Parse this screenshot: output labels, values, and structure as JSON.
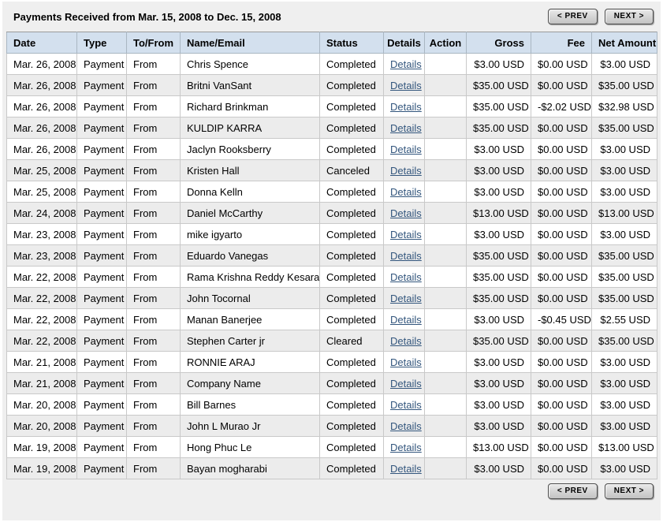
{
  "header": {
    "title": "Payments Received from Mar. 15, 2008 to Dec. 15, 2008",
    "prev_label": "< PREV",
    "next_label": "NEXT >"
  },
  "footer": {
    "prev_label": "< PREV",
    "next_label": "NEXT >"
  },
  "colors": {
    "panel_bg": "#efefef",
    "header_row_bg": "#d3e0ee",
    "alt_row_bg": "#ececec",
    "link": "#33567d"
  },
  "table": {
    "columns": [
      "Date",
      "Type",
      "To/From",
      "Name/Email",
      "Status",
      "Details",
      "Action",
      "Gross",
      "Fee",
      "Net Amount"
    ],
    "rows": [
      {
        "date": "Mar. 26, 2008",
        "type": "Payment",
        "to_from": "From",
        "name": "Chris Spence",
        "status": "Completed",
        "details_label": "Details",
        "action": "",
        "gross": "$3.00 USD",
        "fee": "$0.00 USD",
        "net": "$3.00 USD"
      },
      {
        "date": "Mar. 26, 2008",
        "type": "Payment",
        "to_from": "From",
        "name": "Britni VanSant",
        "status": "Completed",
        "details_label": "Details",
        "action": "",
        "gross": "$35.00 USD",
        "fee": "$0.00 USD",
        "net": "$35.00 USD"
      },
      {
        "date": "Mar. 26, 2008",
        "type": "Payment",
        "to_from": "From",
        "name": "Richard Brinkman",
        "status": "Completed",
        "details_label": "Details",
        "action": "",
        "gross": "$35.00 USD",
        "fee": "-$2.02 USD",
        "net": "$32.98 USD"
      },
      {
        "date": "Mar. 26, 2008",
        "type": "Payment",
        "to_from": "From",
        "name": "KULDIP KARRA",
        "status": "Completed",
        "details_label": "Details",
        "action": "",
        "gross": "$35.00 USD",
        "fee": "$0.00 USD",
        "net": "$35.00 USD"
      },
      {
        "date": "Mar. 26, 2008",
        "type": "Payment",
        "to_from": "From",
        "name": "Jaclyn Rooksberry",
        "status": "Completed",
        "details_label": "Details",
        "action": "",
        "gross": "$3.00 USD",
        "fee": "$0.00 USD",
        "net": "$3.00 USD"
      },
      {
        "date": "Mar. 25, 2008",
        "type": "Payment",
        "to_from": "From",
        "name": "Kristen Hall",
        "status": "Canceled",
        "details_label": "Details",
        "action": "",
        "gross": "$3.00 USD",
        "fee": "$0.00 USD",
        "net": "$3.00 USD"
      },
      {
        "date": "Mar. 25, 2008",
        "type": "Payment",
        "to_from": "From",
        "name": "Donna Kelln",
        "status": "Completed",
        "details_label": "Details",
        "action": "",
        "gross": "$3.00 USD",
        "fee": "$0.00 USD",
        "net": "$3.00 USD"
      },
      {
        "date": "Mar. 24, 2008",
        "type": "Payment",
        "to_from": "From",
        "name": "Daniel McCarthy",
        "status": "Completed",
        "details_label": "Details",
        "action": "",
        "gross": "$13.00 USD",
        "fee": "$0.00 USD",
        "net": "$13.00 USD"
      },
      {
        "date": "Mar. 23, 2008",
        "type": "Payment",
        "to_from": "From",
        "name": "mike igyarto",
        "status": "Completed",
        "details_label": "Details",
        "action": "",
        "gross": "$3.00 USD",
        "fee": "$0.00 USD",
        "net": "$3.00 USD"
      },
      {
        "date": "Mar. 23, 2008",
        "type": "Payment",
        "to_from": "From",
        "name": "Eduardo Vanegas",
        "status": "Completed",
        "details_label": "Details",
        "action": "",
        "gross": "$35.00 USD",
        "fee": "$0.00 USD",
        "net": "$35.00 USD"
      },
      {
        "date": "Mar. 22, 2008",
        "type": "Payment",
        "to_from": "From",
        "name": "Rama Krishna Reddy Kesara",
        "status": "Completed",
        "details_label": "Details",
        "action": "",
        "gross": "$35.00 USD",
        "fee": "$0.00 USD",
        "net": "$35.00 USD"
      },
      {
        "date": "Mar. 22, 2008",
        "type": "Payment",
        "to_from": "From",
        "name": "John Tocornal",
        "status": "Completed",
        "details_label": "Details",
        "action": "",
        "gross": "$35.00 USD",
        "fee": "$0.00 USD",
        "net": "$35.00 USD"
      },
      {
        "date": "Mar. 22, 2008",
        "type": "Payment",
        "to_from": "From",
        "name": "Manan Banerjee",
        "status": "Completed",
        "details_label": "Details",
        "action": "",
        "gross": "$3.00 USD",
        "fee": "-$0.45 USD",
        "net": "$2.55 USD"
      },
      {
        "date": "Mar. 22, 2008",
        "type": "Payment",
        "to_from": "From",
        "name": "Stephen Carter jr",
        "status": "Cleared",
        "details_label": "Details",
        "action": "",
        "gross": "$35.00 USD",
        "fee": "$0.00 USD",
        "net": "$35.00 USD"
      },
      {
        "date": "Mar. 21, 2008",
        "type": "Payment",
        "to_from": "From",
        "name": "RONNIE ARAJ",
        "status": "Completed",
        "details_label": "Details",
        "action": "",
        "gross": "$3.00 USD",
        "fee": "$0.00 USD",
        "net": "$3.00 USD"
      },
      {
        "date": "Mar. 21, 2008",
        "type": "Payment",
        "to_from": "From",
        "name": "Company Name",
        "status": "Completed",
        "details_label": "Details",
        "action": "",
        "gross": "$3.00 USD",
        "fee": "$0.00 USD",
        "net": "$3.00 USD"
      },
      {
        "date": "Mar. 20, 2008",
        "type": "Payment",
        "to_from": "From",
        "name": "Bill Barnes",
        "status": "Completed",
        "details_label": "Details",
        "action": "",
        "gross": "$3.00 USD",
        "fee": "$0.00 USD",
        "net": "$3.00 USD"
      },
      {
        "date": "Mar. 20, 2008",
        "type": "Payment",
        "to_from": "From",
        "name": "John L Murao Jr",
        "status": "Completed",
        "details_label": "Details",
        "action": "",
        "gross": "$3.00 USD",
        "fee": "$0.00 USD",
        "net": "$3.00 USD"
      },
      {
        "date": "Mar. 19, 2008",
        "type": "Payment",
        "to_from": "From",
        "name": "Hong Phuc Le",
        "status": "Completed",
        "details_label": "Details",
        "action": "",
        "gross": "$13.00 USD",
        "fee": "$0.00 USD",
        "net": "$13.00 USD"
      },
      {
        "date": "Mar. 19, 2008",
        "type": "Payment",
        "to_from": "From",
        "name": "Bayan mogharabi",
        "status": "Completed",
        "details_label": "Details",
        "action": "",
        "gross": "$3.00 USD",
        "fee": "$0.00 USD",
        "net": "$3.00 USD"
      }
    ]
  }
}
